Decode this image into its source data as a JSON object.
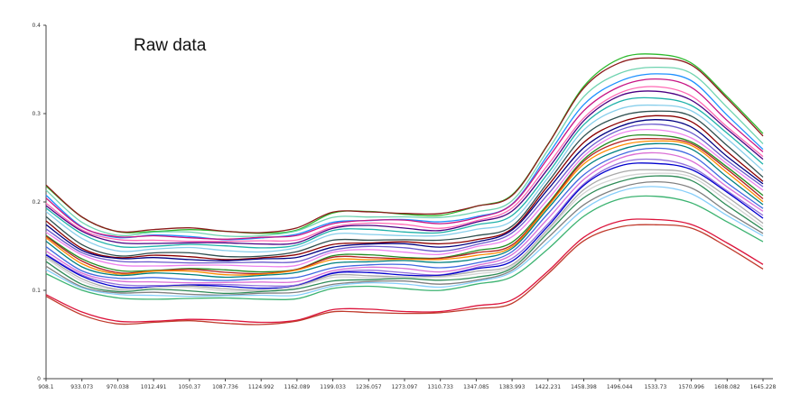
{
  "chart_data": {
    "type": "line",
    "title": "Raw data",
    "xlabel": "",
    "ylabel": "",
    "ylim": [
      0,
      0.4
    ],
    "yticks": [
      "0",
      "0.1",
      "0.2",
      "0.3",
      "0.4"
    ],
    "x": [
      "908.1",
      "933.073",
      "970.038",
      "1012.491",
      "1050.37",
      "1087.736",
      "1124.992",
      "1162.089",
      "1199.033",
      "1236.057",
      "1273.097",
      "1310.733",
      "1347.085",
      "1383.993",
      "1422.231",
      "1458.398",
      "1496.044",
      "1533.73",
      "1570.996",
      "1608.082",
      "1645.228"
    ],
    "grid": false,
    "legend": "none",
    "shape": [
      0.0,
      -0.03,
      -0.042,
      -0.041,
      -0.041,
      -0.043,
      -0.043,
      -0.04,
      -0.026,
      -0.024,
      -0.025,
      -0.027,
      -0.02,
      -0.008,
      0.04,
      0.092,
      0.117,
      0.123,
      0.115,
      0.082,
      0.048
    ],
    "series": [
      {
        "color": "#2db92d",
        "start": 0.218,
        "amp": 1.22
      },
      {
        "color": "#8b1a1a",
        "start": 0.218,
        "amp": 1.19
      },
      {
        "color": "#6fd3b0",
        "start": 0.212,
        "amp": 1.15
      },
      {
        "color": "#1e90ff",
        "start": 0.207,
        "amp": 1.12
      },
      {
        "color": "#c71585",
        "start": 0.205,
        "amp": 1.08
      },
      {
        "color": "#ff69b4",
        "start": 0.2,
        "amp": 1.05
      },
      {
        "color": "#4b0082",
        "start": 0.197,
        "amp": 1.04
      },
      {
        "color": "#20b2aa",
        "start": 0.193,
        "amp": 1.02
      },
      {
        "color": "#87ceeb",
        "start": 0.188,
        "amp": 1.0
      },
      {
        "color": "#2f4f4f",
        "start": 0.182,
        "amp": 0.99
      },
      {
        "color": "#8b0000",
        "start": 0.178,
        "amp": 0.97
      },
      {
        "color": "#000080",
        "start": 0.175,
        "amp": 0.95
      },
      {
        "color": "#6a5acd",
        "start": 0.171,
        "amp": 0.94
      },
      {
        "color": "#ee82ee",
        "start": 0.167,
        "amp": 0.93
      },
      {
        "color": "#228b22",
        "start": 0.162,
        "amp": 0.93
      },
      {
        "color": "#b22222",
        "start": 0.16,
        "amp": 0.92
      },
      {
        "color": "#ff8c00",
        "start": 0.158,
        "amp": 0.91
      },
      {
        "color": "#008080",
        "start": 0.155,
        "amp": 0.9
      },
      {
        "color": "#4169e1",
        "start": 0.15,
        "amp": 0.89
      },
      {
        "color": "#da70d6",
        "start": 0.146,
        "amp": 0.88
      },
      {
        "color": "#9370db",
        "start": 0.142,
        "amp": 0.86
      },
      {
        "color": "#0000cd",
        "start": 0.14,
        "amp": 0.85
      },
      {
        "color": "#a9a9a9",
        "start": 0.137,
        "amp": 0.82
      },
      {
        "color": "#d3d3d3",
        "start": 0.135,
        "amp": 0.8
      },
      {
        "color": "#2e8b57",
        "start": 0.132,
        "amp": 0.79
      },
      {
        "color": "#808080",
        "start": 0.128,
        "amp": 0.76
      },
      {
        "color": "#87cefa",
        "start": 0.125,
        "amp": 0.74
      },
      {
        "color": "#3cb371",
        "start": 0.12,
        "amp": 0.7
      },
      {
        "color": "#dc143c",
        "start": 0.095,
        "amp": 0.7
      },
      {
        "color": "#c0392b",
        "start": 0.092,
        "amp": 0.68
      }
    ]
  }
}
